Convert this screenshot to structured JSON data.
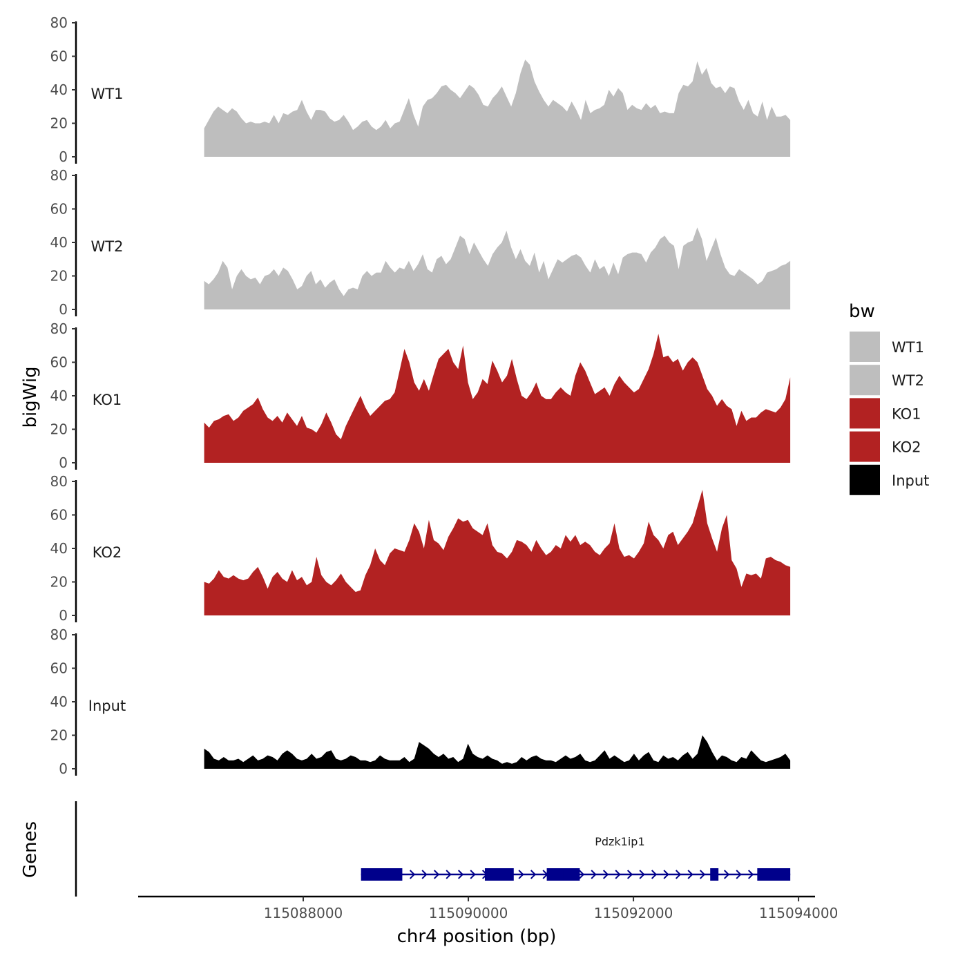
{
  "chart_data": {
    "type": "area",
    "y_axis_title": "bigWig",
    "x_axis_title": "chr4 position (bp)",
    "gene_axis_title": "Genes",
    "ylim": [
      0,
      80
    ],
    "y_ticks": [
      0,
      20,
      40,
      60,
      80
    ],
    "xlim": [
      115086000,
      115094200
    ],
    "x_ticks": [
      115088000,
      115090000,
      115092000,
      115094000
    ],
    "x_tick_labels": [
      "115088000",
      "115090000",
      "115092000",
      "115094000"
    ],
    "legend": {
      "title": "bw",
      "placement": "right",
      "entries": [
        {
          "name": "WT1",
          "color": "#BEBEBE"
        },
        {
          "name": "WT2",
          "color": "#BEBEBE"
        },
        {
          "name": "KO1",
          "color": "#B22222"
        },
        {
          "name": "KO2",
          "color": "#B22222"
        },
        {
          "name": "Input",
          "color": "#000000"
        }
      ]
    },
    "x_start": 115086800,
    "x_end": 115093900,
    "series": [
      {
        "name": "WT1",
        "color": "#BEBEBE",
        "values": [
          17,
          22,
          27,
          30,
          28,
          26,
          29,
          27,
          23,
          20,
          21,
          20,
          20,
          21,
          20,
          25,
          20,
          26,
          25,
          27,
          28,
          34,
          27,
          22,
          28,
          28,
          27,
          23,
          21,
          22,
          25,
          21,
          16,
          18,
          21,
          22,
          18,
          16,
          18,
          22,
          17,
          20,
          21,
          28,
          35,
          25,
          18,
          30,
          34,
          35,
          38,
          42,
          43,
          40,
          38,
          35,
          39,
          43,
          41,
          37,
          31,
          30,
          35,
          38,
          42,
          36,
          30,
          38,
          50,
          58,
          55,
          45,
          39,
          34,
          30,
          34,
          32,
          30,
          27,
          33,
          28,
          22,
          34,
          26,
          28,
          29,
          31,
          40,
          36,
          41,
          38,
          28,
          31,
          29,
          28,
          32,
          29,
          31,
          26,
          27,
          26,
          26,
          38,
          43,
          42,
          45,
          57,
          49,
          53,
          44,
          41,
          42,
          38,
          42,
          41,
          33,
          28,
          34,
          26,
          24,
          33,
          22,
          30,
          24,
          24,
          25,
          22
        ]
      },
      {
        "name": "WT2",
        "color": "#BEBEBE",
        "values": [
          17,
          15,
          18,
          22,
          29,
          25,
          12,
          20,
          24,
          20,
          18,
          19,
          15,
          20,
          21,
          24,
          20,
          25,
          23,
          18,
          12,
          14,
          20,
          23,
          15,
          18,
          13,
          16,
          18,
          12,
          8,
          12,
          13,
          12,
          20,
          23,
          20,
          22,
          22,
          29,
          25,
          22,
          25,
          24,
          29,
          23,
          27,
          33,
          24,
          22,
          30,
          32,
          27,
          30,
          37,
          44,
          42,
          33,
          40,
          35,
          30,
          26,
          33,
          37,
          40,
          47,
          37,
          30,
          36,
          29,
          26,
          34,
          22,
          29,
          18,
          24,
          30,
          28,
          30,
          32,
          33,
          31,
          26,
          22,
          30,
          24,
          26,
          20,
          28,
          21,
          31,
          33,
          34,
          34,
          33,
          28,
          34,
          37,
          42,
          44,
          40,
          38,
          24,
          38,
          40,
          41,
          49,
          42,
          29,
          36,
          43,
          33,
          25,
          21,
          20,
          24,
          22,
          20,
          18,
          15,
          17,
          22,
          23,
          24,
          26,
          27,
          29
        ]
      },
      {
        "name": "KO1",
        "color": "#B22222",
        "values": [
          24,
          21,
          25,
          26,
          28,
          29,
          25,
          27,
          31,
          33,
          35,
          39,
          32,
          27,
          25,
          28,
          24,
          30,
          26,
          22,
          28,
          21,
          20,
          18,
          23,
          30,
          24,
          17,
          14,
          22,
          28,
          34,
          40,
          33,
          28,
          31,
          34,
          37,
          38,
          42,
          55,
          68,
          60,
          48,
          43,
          50,
          43,
          53,
          62,
          65,
          68,
          60,
          56,
          70,
          48,
          38,
          42,
          50,
          47,
          61,
          55,
          48,
          52,
          62,
          50,
          40,
          38,
          42,
          48,
          40,
          38,
          38,
          42,
          45,
          42,
          40,
          52,
          60,
          55,
          48,
          41,
          43,
          45,
          40,
          47,
          52,
          48,
          45,
          42,
          44,
          50,
          56,
          65,
          77,
          63,
          64,
          60,
          62,
          55,
          60,
          63,
          60,
          52,
          44,
          40,
          34,
          38,
          34,
          32,
          22,
          31,
          25,
          27,
          27,
          30,
          32,
          31,
          30,
          33,
          38,
          51
        ]
      },
      {
        "name": "KO2",
        "color": "#B22222",
        "values": [
          20,
          19,
          22,
          27,
          23,
          22,
          24,
          22,
          21,
          22,
          26,
          29,
          23,
          16,
          23,
          26,
          22,
          20,
          27,
          21,
          23,
          18,
          20,
          35,
          24,
          20,
          18,
          21,
          25,
          20,
          17,
          14,
          15,
          24,
          30,
          40,
          33,
          30,
          37,
          40,
          39,
          38,
          45,
          55,
          50,
          40,
          57,
          45,
          43,
          39,
          47,
          52,
          58,
          56,
          57,
          52,
          50,
          48,
          55,
          42,
          38,
          37,
          34,
          38,
          45,
          44,
          42,
          38,
          45,
          40,
          36,
          38,
          42,
          40,
          48,
          44,
          48,
          42,
          44,
          42,
          38,
          36,
          40,
          43,
          55,
          40,
          35,
          36,
          34,
          38,
          43,
          56,
          48,
          45,
          40,
          48,
          50,
          42,
          46,
          50,
          55,
          65,
          75,
          55,
          46,
          38,
          52,
          60,
          33,
          28,
          17,
          25,
          24,
          25,
          22,
          34,
          35,
          33,
          32,
          30,
          29
        ]
      },
      {
        "name": "Input",
        "color": "#000000",
        "values": [
          12,
          10,
          6,
          5,
          7,
          5,
          5,
          6,
          4,
          6,
          8,
          5,
          6,
          8,
          7,
          5,
          9,
          11,
          9,
          6,
          5,
          6,
          9,
          6,
          7,
          10,
          11,
          6,
          5,
          6,
          8,
          7,
          5,
          5,
          4,
          5,
          8,
          6,
          5,
          5,
          5,
          7,
          4,
          6,
          16,
          14,
          12,
          9,
          7,
          9,
          6,
          7,
          4,
          6,
          15,
          9,
          7,
          6,
          8,
          6,
          5,
          3,
          4,
          3,
          4,
          7,
          5,
          7,
          8,
          6,
          5,
          5,
          4,
          6,
          8,
          6,
          7,
          9,
          5,
          4,
          5,
          8,
          11,
          6,
          8,
          6,
          4,
          5,
          9,
          5,
          8,
          10,
          5,
          4,
          8,
          6,
          7,
          5,
          8,
          10,
          6,
          9,
          20,
          16,
          10,
          5,
          8,
          7,
          5,
          4,
          7,
          6,
          11,
          8,
          5,
          4,
          5,
          6,
          7,
          9,
          5
        ]
      }
    ],
    "genes": [
      {
        "name": "Pdzk1ip1",
        "start": 115088700,
        "end": 115093900,
        "strand": "+",
        "exons": [
          [
            115088700,
            115089200
          ],
          [
            115090200,
            115090550
          ],
          [
            115090950,
            115091250
          ],
          [
            115091150,
            115091350
          ],
          [
            115092930,
            115093030
          ],
          [
            115093500,
            115093900
          ]
        ]
      }
    ]
  }
}
